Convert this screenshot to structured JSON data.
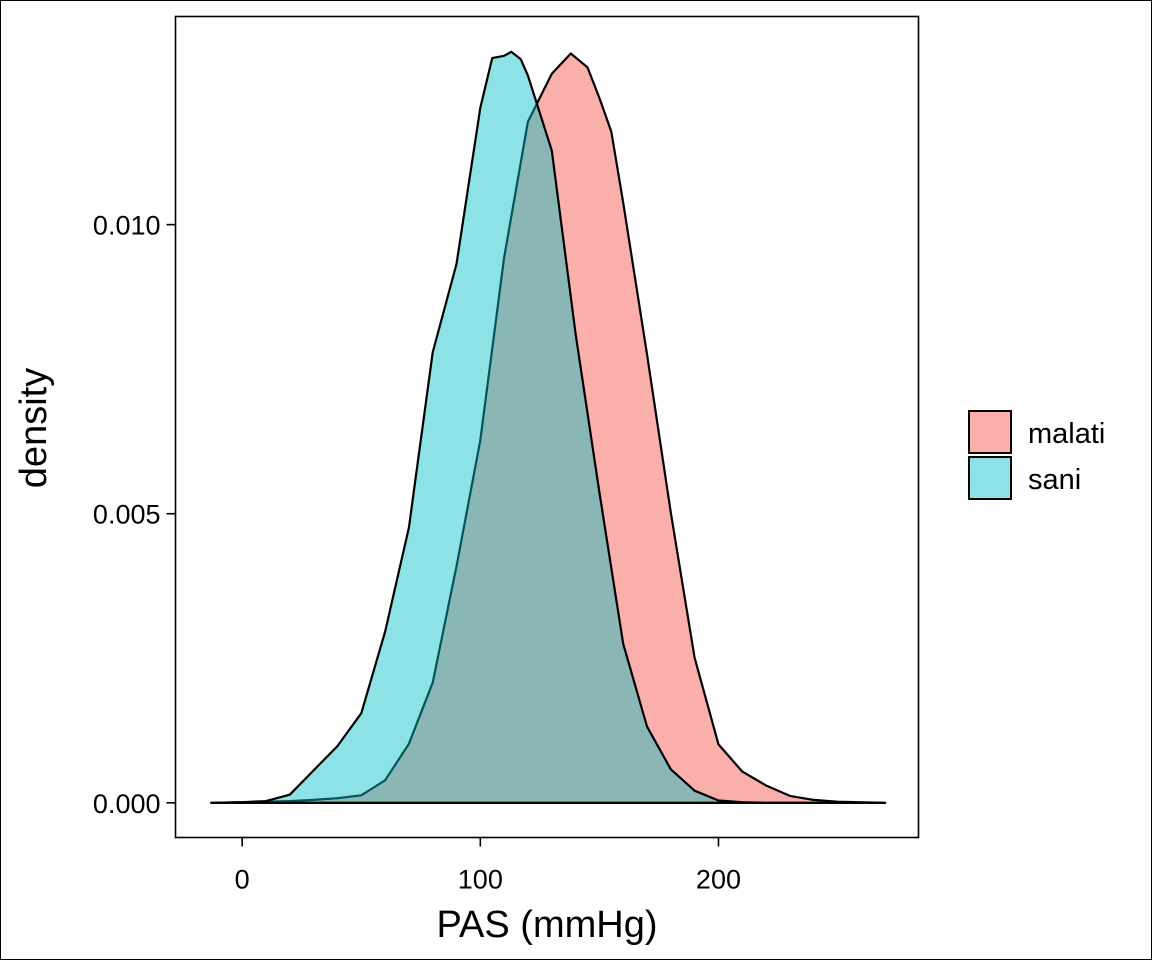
{
  "chart_data": {
    "type": "area",
    "subtype": "density",
    "title": "",
    "xlabel": "PAS (mmHg)",
    "ylabel": "density",
    "xlim": [
      -28,
      284
    ],
    "ylim": [
      -0.0006,
      0.0136
    ],
    "x_ticks": [
      0,
      100,
      200
    ],
    "x_tick_labels": [
      "0",
      "100",
      "200"
    ],
    "y_ticks": [
      0,
      0.005,
      0.01
    ],
    "y_tick_labels": [
      "0.000",
      "0.005",
      "0.010"
    ],
    "grid": false,
    "legend_position": "right",
    "series": [
      {
        "name": "malati",
        "fill": "#F8766D",
        "fill_opacity": 0.58,
        "points": [
          [
            -13,
            0
          ],
          [
            0,
            1e-05
          ],
          [
            10,
            2e-05
          ],
          [
            20,
            3e-05
          ],
          [
            30,
            5e-05
          ],
          [
            40,
            8e-05
          ],
          [
            50,
            0.00013
          ],
          [
            60,
            0.00039
          ],
          [
            70,
            0.00102
          ],
          [
            80,
            0.00208
          ],
          [
            90,
            0.00409
          ],
          [
            100,
            0.00627
          ],
          [
            110,
            0.00943
          ],
          [
            120,
            0.01178
          ],
          [
            130,
            0.01261
          ],
          [
            138,
            0.01296
          ],
          [
            145,
            0.01272
          ],
          [
            150,
            0.01219
          ],
          [
            155,
            0.01161
          ],
          [
            160,
            0.01038
          ],
          [
            170,
            0.00776
          ],
          [
            180,
            0.00502
          ],
          [
            190,
            0.00251
          ],
          [
            200,
            0.00101
          ],
          [
            210,
            0.00054
          ],
          [
            220,
            0.0003
          ],
          [
            230,
            0.00012
          ],
          [
            240,
            5e-05
          ],
          [
            250,
            2e-05
          ],
          [
            270,
            0
          ]
        ]
      },
      {
        "name": "sani",
        "fill": "#00BFC4",
        "fill_opacity": 0.45,
        "points": [
          [
            -13,
            0
          ],
          [
            0,
            1e-05
          ],
          [
            10,
            3e-05
          ],
          [
            20,
            0.00014
          ],
          [
            30,
            0.00056
          ],
          [
            40,
            0.00098
          ],
          [
            50,
            0.00155
          ],
          [
            60,
            0.00296
          ],
          [
            70,
            0.00476
          ],
          [
            80,
            0.00779
          ],
          [
            90,
            0.00932
          ],
          [
            100,
            0.01202
          ],
          [
            105,
            0.01288
          ],
          [
            110,
            0.01292
          ],
          [
            113,
            0.01299
          ],
          [
            117,
            0.01286
          ],
          [
            120,
            0.01258
          ],
          [
            130,
            0.01128
          ],
          [
            140,
            0.00811
          ],
          [
            150,
            0.00537
          ],
          [
            160,
            0.00275
          ],
          [
            170,
            0.00132
          ],
          [
            180,
            0.00058
          ],
          [
            190,
            0.00021
          ],
          [
            200,
            4e-05
          ],
          [
            210,
            1e-05
          ],
          [
            220,
            0
          ],
          [
            240,
            0
          ],
          [
            270,
            0
          ]
        ]
      }
    ]
  }
}
